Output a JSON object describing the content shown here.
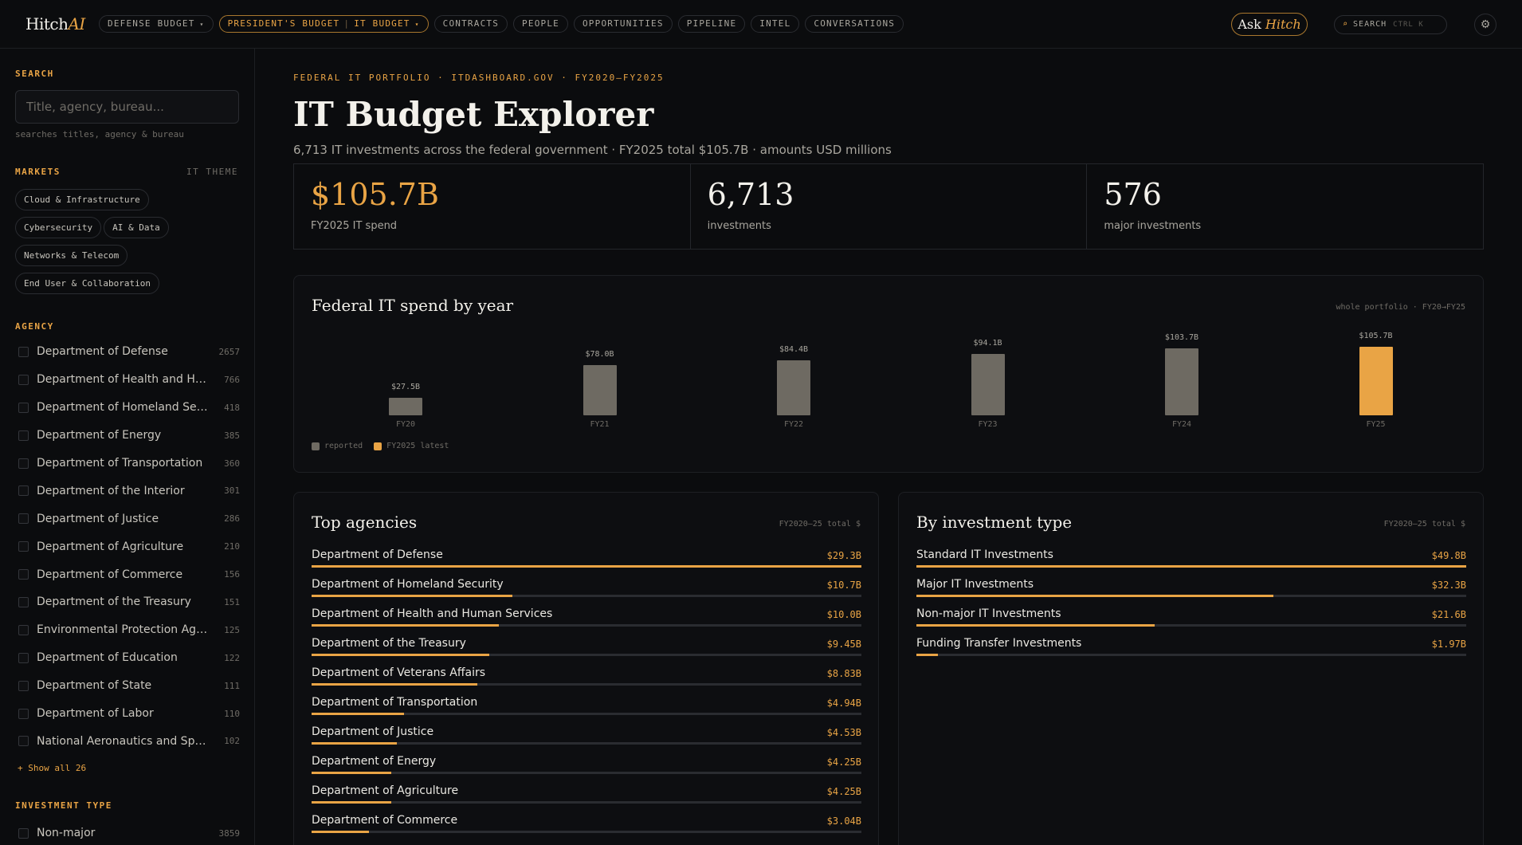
{
  "nav": {
    "logo_main": "Hitch",
    "logo_accent": "AI",
    "tabs": [
      {
        "label": "DEFENSE BUDGET",
        "caret": "▾"
      },
      {
        "label": "PRESIDENT'S BUDGET",
        "sub": "IT BUDGET",
        "caret": "▾"
      },
      {
        "label": "CONTRACTS"
      },
      {
        "label": "PEOPLE"
      },
      {
        "label": "OPPORTUNITIES"
      },
      {
        "label": "PIPELINE"
      },
      {
        "label": "INTEL"
      },
      {
        "label": "CONVERSATIONS"
      }
    ],
    "ask_label": "Ask",
    "ask_accent": "Hitch",
    "search_label": "SEARCH",
    "search_shortcut": "CTRL K",
    "search_icon": "search-icon",
    "gear_icon": "gear-icon"
  },
  "sidebar": {
    "search_heading": "SEARCH",
    "search_placeholder": "Title, agency, bureau...",
    "search_value": "",
    "search_hint": "searches titles, agency & bureau",
    "markets_heading": "MARKETS",
    "markets_right": "IT THEME",
    "markets": [
      "Cloud & Infrastructure",
      "Cybersecurity",
      "AI & Data",
      "Networks & Telecom",
      "End User & Collaboration"
    ],
    "agency_heading": "AGENCY",
    "agencies": [
      {
        "name": "Department of Defense",
        "count": "2657"
      },
      {
        "name": "Department of Health and Hu...",
        "count": "766"
      },
      {
        "name": "Department of Homeland Sec...",
        "count": "418"
      },
      {
        "name": "Department of Energy",
        "count": "385"
      },
      {
        "name": "Department of Transportation",
        "count": "360"
      },
      {
        "name": "Department of the Interior",
        "count": "301"
      },
      {
        "name": "Department of Justice",
        "count": "286"
      },
      {
        "name": "Department of Agriculture",
        "count": "210"
      },
      {
        "name": "Department of Commerce",
        "count": "156"
      },
      {
        "name": "Department of the Treasury",
        "count": "151"
      },
      {
        "name": "Environmental Protection Age...",
        "count": "125"
      },
      {
        "name": "Department of Education",
        "count": "122"
      },
      {
        "name": "Department of State",
        "count": "111"
      },
      {
        "name": "Department of Labor",
        "count": "110"
      },
      {
        "name": "National Aeronautics and Spa...",
        "count": "102"
      }
    ],
    "show_all": "+ Show all 26",
    "investment_type_heading": "INVESTMENT TYPE",
    "investment_types": [
      {
        "name": "Non-major",
        "count": "3859"
      }
    ]
  },
  "main": {
    "eyebrow": "FEDERAL IT PORTFOLIO · ITDASHBOARD.GOV · FY2020–FY2025",
    "title": "IT Budget Explorer",
    "subtitle": "6,713 IT investments across the federal government · FY2025 total $105.7B · amounts USD millions",
    "kpis": [
      {
        "value": "$105.7B",
        "label": "FY2025 IT spend"
      },
      {
        "value": "6,713",
        "label": "investments"
      },
      {
        "value": "576",
        "label": "major investments"
      }
    ],
    "chart_title": "Federal IT spend by year",
    "chart_note": "whole portfolio · FY20→FY25",
    "legend": [
      {
        "label": "reported",
        "color": "#6e6a62"
      },
      {
        "label": "FY2025 latest",
        "color": "#e9a445"
      }
    ],
    "top_agencies": {
      "title": "Top agencies",
      "note": "FY2020–25 total $",
      "rows": [
        {
          "name": "Department of Defense",
          "value": "$29.3B",
          "amount": 29.3
        },
        {
          "name": "Department of Homeland Security",
          "value": "$10.7B",
          "amount": 10.7
        },
        {
          "name": "Department of Health and Human Services",
          "value": "$10.0B",
          "amount": 10.0
        },
        {
          "name": "Department of the Treasury",
          "value": "$9.45B",
          "amount": 9.45
        },
        {
          "name": "Department of Veterans Affairs",
          "value": "$8.83B",
          "amount": 8.83
        },
        {
          "name": "Department of Transportation",
          "value": "$4.94B",
          "amount": 4.94
        },
        {
          "name": "Department of Justice",
          "value": "$4.53B",
          "amount": 4.53
        },
        {
          "name": "Department of Energy",
          "value": "$4.25B",
          "amount": 4.25
        },
        {
          "name": "Department of Agriculture",
          "value": "$4.25B",
          "amount": 4.25
        },
        {
          "name": "Department of Commerce",
          "value": "$3.04B",
          "amount": 3.04
        }
      ]
    },
    "by_type": {
      "title": "By investment type",
      "note": "FY2020–25 total $",
      "rows": [
        {
          "name": "Standard IT Investments",
          "value": "$49.8B",
          "amount": 49.8
        },
        {
          "name": "Major IT Investments",
          "value": "$32.3B",
          "amount": 32.3
        },
        {
          "name": "Non-major IT Investments",
          "value": "$21.6B",
          "amount": 21.6
        },
        {
          "name": "Funding Transfer Investments",
          "value": "$1.97B",
          "amount": 1.97
        }
      ]
    }
  },
  "chart_data": {
    "type": "bar",
    "title": "Federal IT spend by year",
    "categories": [
      "FY20",
      "FY21",
      "FY22",
      "FY23",
      "FY24",
      "FY25"
    ],
    "values": [
      27.5,
      78.0,
      84.4,
      94.1,
      103.7,
      105.7
    ],
    "value_labels": [
      "$27.5B",
      "$78.0B",
      "$84.4B",
      "$94.1B",
      "$103.7B",
      "$105.7B"
    ],
    "highlight_index": 5,
    "series": [
      {
        "name": "reported",
        "values": [
          27.5,
          78.0,
          84.4,
          94.1,
          103.7,
          null
        ]
      },
      {
        "name": "FY2025 latest",
        "values": [
          null,
          null,
          null,
          null,
          null,
          105.7
        ]
      }
    ],
    "ylim": [
      0,
      105.7
    ],
    "grid": false,
    "legend": "bottom-left"
  }
}
